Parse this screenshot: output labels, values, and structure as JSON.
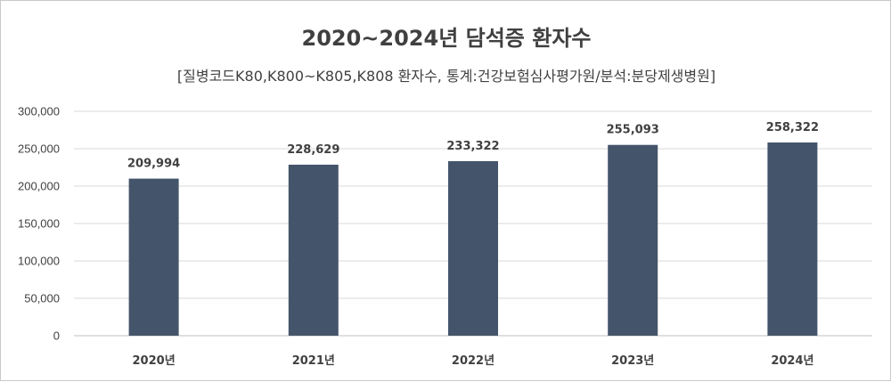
{
  "chart_data": {
    "type": "bar",
    "title": "2020~2024년 담석증 환자수",
    "subtitle": "[질병코드K80,K800~K805,K808 환자수, 통계:건강보험심사평가원/분석:분당제생병원]",
    "categories": [
      "2020년",
      "2021년",
      "2022년",
      "2023년",
      "2024년"
    ],
    "values": [
      209994,
      228629,
      233322,
      255093,
      258322
    ],
    "value_labels": [
      "209,994",
      "228,629",
      "233,322",
      "255,093",
      "258,322"
    ],
    "ylim": [
      0,
      300000
    ],
    "yticks": [
      0,
      50000,
      100000,
      150000,
      200000,
      250000,
      300000
    ],
    "ytick_labels": [
      "0",
      "50,000",
      "100,000",
      "150,000",
      "200,000",
      "250,000",
      "300,000"
    ],
    "xlabel": "",
    "ylabel": "",
    "grid": true,
    "legend": "none",
    "bar_color": "#44546a",
    "grid_color": "#d9d9d9"
  }
}
